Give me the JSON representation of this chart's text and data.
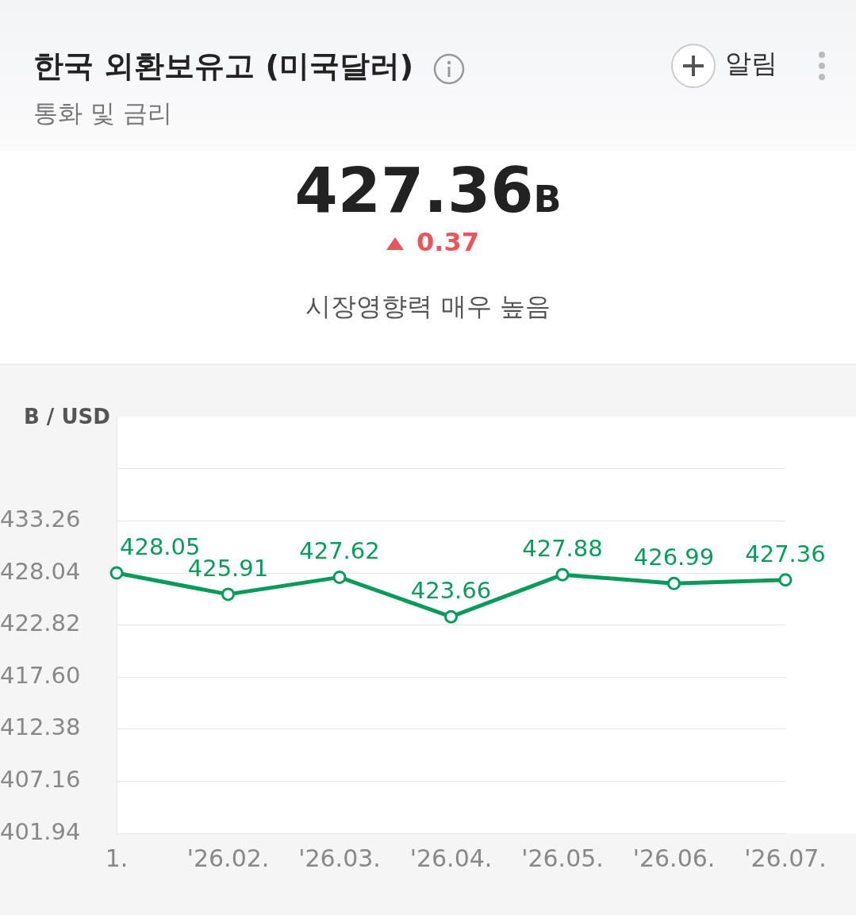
{
  "chart_data": {
    "type": "line",
    "title": "한국 외환보유고 (미국달러)",
    "subtitle": "통화 및 금리",
    "ylabel": "B / USD",
    "annotations": [
      "427.36B",
      "0.37",
      "시장영향력 매우 높음",
      "알림"
    ],
    "categories": [
      "1.",
      "'26.02.",
      "'26.03.",
      "'26.04.",
      "'26.05.",
      "'26.06.",
      "'26.07."
    ],
    "series": [
      {
        "color": "#0b9a5e",
        "values": [
          428.05,
          425.91,
          427.62,
          423.66,
          427.88,
          426.99,
          427.36
        ]
      }
    ],
    "ylim": [
      401.94,
      443.7
    ],
    "yticks": [
      401.94,
      407.16,
      412.38,
      {
        "value": 417.6,
        "label": "417.60"
      },
      422.82,
      428.04,
      433.26,
      {
        "value": 438.48,
        "label": null
      }
    ],
    "grid": "y",
    "legend": false,
    "marker": "circle",
    "line_style": "solid",
    "data_labels": true
  }
}
